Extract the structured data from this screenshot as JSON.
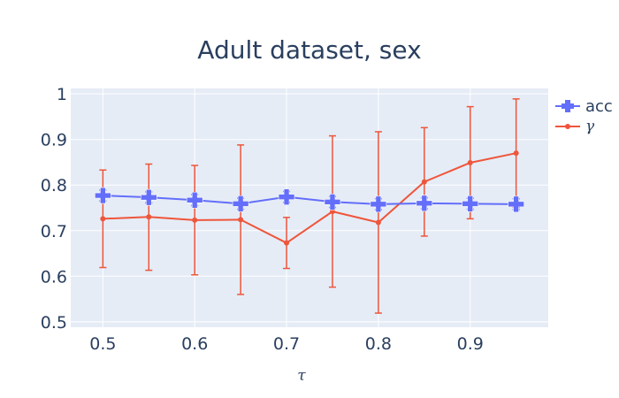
{
  "chart_data": {
    "type": "line",
    "title": "Adult dataset, sex",
    "xlabel": "τ",
    "ylabel": "",
    "xlim": [
      0.465,
      0.985
    ],
    "ylim": [
      0.488,
      1.012
    ],
    "xticks": [
      0.5,
      0.6,
      0.7,
      0.8,
      0.9
    ],
    "xtick_labels": [
      "0.5",
      "0.6",
      "0.7",
      "0.8",
      "0.9"
    ],
    "yticks": [
      0.5,
      0.6,
      0.7,
      0.8,
      0.9,
      1.0
    ],
    "ytick_labels": [
      "0.5",
      "0.6",
      "0.7",
      "0.8",
      "0.9",
      "1"
    ],
    "grid": true,
    "legend_placement": "top-right outside",
    "x": [
      0.5,
      0.55,
      0.6,
      0.65,
      0.7,
      0.75,
      0.8,
      0.85,
      0.9,
      0.95
    ],
    "series": [
      {
        "name": "acc",
        "color": "#636efa",
        "marker": "cross",
        "values": [
          0.777,
          0.773,
          0.767,
          0.759,
          0.774,
          0.763,
          0.758,
          0.76,
          0.759,
          0.758
        ],
        "error": [
          0.012,
          0.012,
          0.012,
          0.012,
          0.012,
          0.012,
          0.012,
          0.012,
          0.012,
          0.012
        ]
      },
      {
        "name": "γ",
        "color": "#ef553b",
        "marker": "circle",
        "values": [
          0.726,
          0.73,
          0.723,
          0.724,
          0.673,
          0.742,
          0.718,
          0.807,
          0.849,
          0.87
        ],
        "error_upper": [
          0.833,
          0.846,
          0.843,
          0.888,
          0.729,
          0.908,
          0.917,
          0.926,
          0.972,
          0.989
        ],
        "error_lower": [
          0.619,
          0.613,
          0.603,
          0.56,
          0.617,
          0.576,
          0.519,
          0.688,
          0.726,
          0.751
        ]
      }
    ]
  },
  "legend": {
    "acc_label": "acc",
    "gamma_label": "γ"
  }
}
